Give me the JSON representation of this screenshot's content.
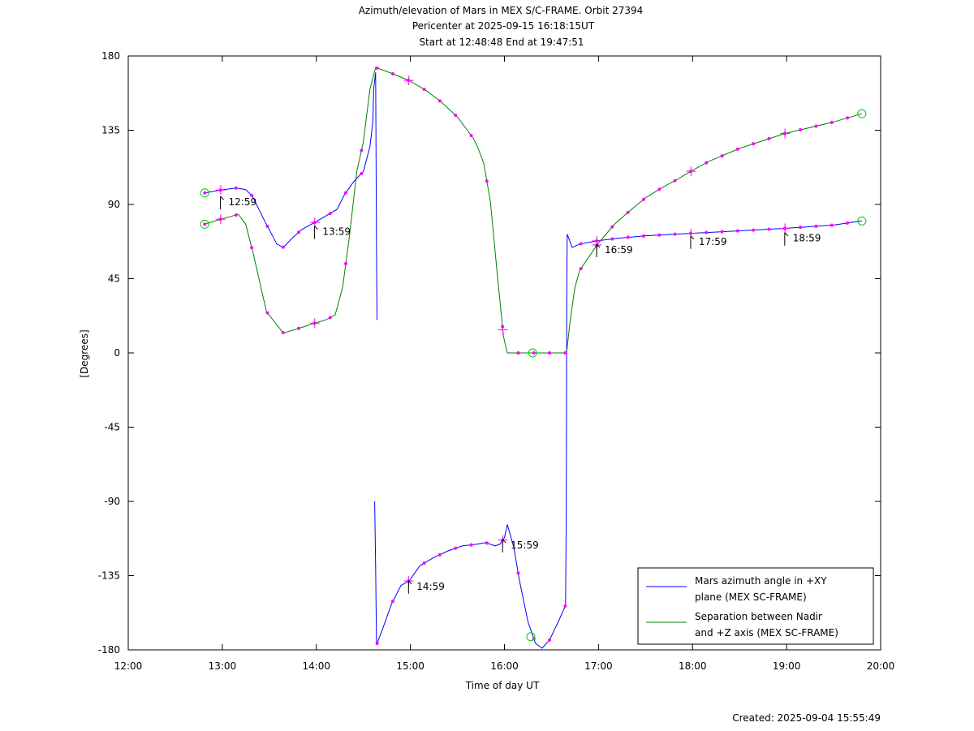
{
  "title": {
    "line1": "Azimuth/elevation of Mars in MEX S/C-FRAME.  Orbit 27394",
    "line2": "Pericenter at 2025-09-15 16:18:15UT",
    "line3": "Start at 12:48:48 End at 19:47:51"
  },
  "footer": "Created: 2025-09-04 15:55:49",
  "chart_data": {
    "type": "line",
    "xlabel": "Time of day UT",
    "ylabel": "[Degrees]",
    "xlim": [
      12,
      20
    ],
    "ylim": [
      -180,
      180
    ],
    "xticks": [
      12,
      13,
      14,
      15,
      16,
      17,
      18,
      19,
      20
    ],
    "xtick_labels": [
      "12:00",
      "13:00",
      "14:00",
      "15:00",
      "16:00",
      "17:00",
      "18:00",
      "19:00",
      "20:00"
    ],
    "yticks": [
      180,
      135,
      90,
      45,
      0,
      -45,
      -90,
      -135,
      -180
    ],
    "ytick_labels": [
      "180",
      "135",
      "90",
      "45",
      "0",
      "-45",
      "-90",
      "-135",
      "-180"
    ],
    "grid": false,
    "legend_position": "bottom-right",
    "series": [
      {
        "name": "Mars azimuth angle in +XY plane (MEX SC-FRAME)",
        "legend_lines": [
          "Mars azimuth angle in +XY",
          "plane (MEX SC-FRAME)"
        ],
        "color": "#0000ff",
        "segments": [
          [
            [
              12.813,
              97
            ],
            [
              12.98,
              98.7
            ],
            [
              13.15,
              100
            ],
            [
              13.25,
              99
            ],
            [
              13.32,
              95
            ],
            [
              13.45,
              80
            ],
            [
              13.58,
              66
            ],
            [
              13.65,
              64
            ],
            [
              13.75,
              70
            ],
            [
              13.85,
              75
            ],
            [
              13.98,
              79
            ],
            [
              14.1,
              83
            ],
            [
              14.22,
              87
            ],
            [
              14.3,
              96
            ],
            [
              14.4,
              104
            ],
            [
              14.5,
              110
            ],
            [
              14.57,
              125
            ],
            [
              14.6,
              140
            ],
            [
              14.61,
              160
            ],
            [
              14.63,
              170
            ],
            [
              14.635,
              120
            ],
            [
              14.64,
              60
            ],
            [
              14.645,
              20
            ]
          ],
          [
            [
              14.62,
              -90
            ],
            [
              14.63,
              -130
            ],
            [
              14.64,
              -177
            ],
            [
              14.7,
              -168
            ],
            [
              14.8,
              -152
            ],
            [
              14.9,
              -141
            ],
            [
              14.99,
              -138
            ],
            [
              15.1,
              -129
            ],
            [
              15.25,
              -124
            ],
            [
              15.4,
              -120
            ],
            [
              15.55,
              -117
            ],
            [
              15.7,
              -116
            ],
            [
              15.8,
              -115
            ],
            [
              15.9,
              -117
            ],
            [
              15.95,
              -116
            ],
            [
              16.0,
              -112
            ],
            [
              16.03,
              -104
            ],
            [
              16.1,
              -118
            ],
            [
              16.16,
              -138
            ],
            [
              16.25,
              -163
            ],
            [
              16.33,
              -176
            ],
            [
              16.4,
              -179
            ],
            [
              16.48,
              -174
            ],
            [
              16.58,
              -162
            ],
            [
              16.65,
              -153
            ],
            [
              16.657,
              -100
            ],
            [
              16.66,
              -20
            ],
            [
              16.663,
              40
            ],
            [
              16.667,
              72
            ],
            [
              16.72,
              64
            ],
            [
              16.8,
              66
            ],
            [
              16.99,
              68
            ],
            [
              17.2,
              69.5
            ],
            [
              17.5,
              71
            ],
            [
              17.98,
              72.5
            ],
            [
              18.5,
              74
            ],
            [
              18.98,
              75.5
            ],
            [
              19.5,
              77.5
            ],
            [
              19.8,
              80
            ]
          ]
        ]
      },
      {
        "name": "Separation between Nadir and +Z axis (MEX SC-FRAME)",
        "legend_lines": [
          "Separation between Nadir",
          "and +Z axis (MEX SC-FRAME)"
        ],
        "color": "#008000",
        "segments": [
          [
            [
              12.813,
              78
            ],
            [
              12.98,
              81
            ],
            [
              13.17,
              84
            ],
            [
              13.25,
              78
            ],
            [
              13.33,
              60
            ],
            [
              13.47,
              25
            ],
            [
              13.65,
              12
            ],
            [
              13.82,
              15
            ],
            [
              13.98,
              18
            ],
            [
              14.1,
              20
            ],
            [
              14.2,
              23
            ],
            [
              14.28,
              40
            ],
            [
              14.35,
              70
            ],
            [
              14.43,
              110
            ],
            [
              14.5,
              128
            ],
            [
              14.57,
              160
            ],
            [
              14.63,
              173
            ],
            [
              14.8,
              169.5
            ],
            [
              14.99,
              165
            ],
            [
              15.17,
              159
            ],
            [
              15.33,
              152
            ],
            [
              15.5,
              143
            ],
            [
              15.67,
              130
            ],
            [
              15.72,
              124
            ],
            [
              15.78,
              115
            ],
            [
              15.85,
              92
            ],
            [
              15.92,
              50
            ],
            [
              15.99,
              10
            ],
            [
              16.03,
              0
            ],
            [
              16.3,
              0
            ],
            [
              16.66,
              0
            ],
            [
              16.7,
              20
            ],
            [
              16.75,
              40
            ],
            [
              16.8,
              50
            ],
            [
              16.99,
              66
            ],
            [
              17.17,
              78
            ],
            [
              17.33,
              86
            ],
            [
              17.5,
              94
            ],
            [
              17.67,
              100
            ],
            [
              17.83,
              105
            ],
            [
              17.98,
              110
            ],
            [
              18.17,
              116
            ],
            [
              18.5,
              124
            ],
            [
              18.98,
              133
            ],
            [
              19.5,
              140
            ],
            [
              19.8,
              145
            ]
          ]
        ]
      }
    ],
    "minute_markers": [
      {
        "t": 12.98,
        "y": 90,
        "label": "12:59"
      },
      {
        "t": 13.98,
        "y": 72,
        "label": "13:59"
      },
      {
        "t": 14.98,
        "y": -143,
        "label": "14:59"
      },
      {
        "t": 15.98,
        "y": -118,
        "label": "15:59"
      },
      {
        "t": 16.98,
        "y": 61,
        "label": "16:59"
      },
      {
        "t": 17.98,
        "y": 66,
        "label": "17:59"
      },
      {
        "t": 18.98,
        "y": 68,
        "label": "18:59"
      }
    ]
  }
}
